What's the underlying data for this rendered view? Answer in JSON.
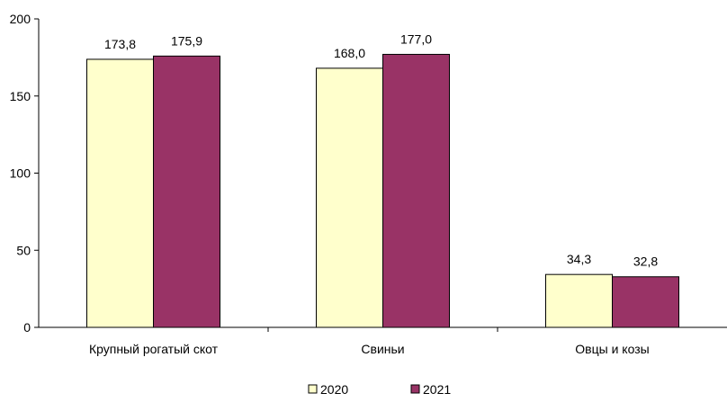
{
  "chart_data": {
    "type": "bar",
    "categories": [
      "Крупный рогатый скот",
      "Свиньи",
      "Овцы и козы"
    ],
    "series": [
      {
        "name": "2020",
        "values": [
          173.8,
          168.0,
          34.3
        ],
        "labels": [
          "173,8",
          "168,0",
          "34,3"
        ],
        "color": "#ffffcc"
      },
      {
        "name": "2021",
        "values": [
          175.9,
          177.0,
          32.8
        ],
        "labels": [
          "175,9",
          "177,0",
          "32,8"
        ],
        "color": "#993366"
      }
    ],
    "ylim": [
      0,
      200
    ],
    "yticks": [
      0,
      50,
      100,
      150,
      200
    ],
    "grid": false,
    "legend": "bottom-center"
  }
}
